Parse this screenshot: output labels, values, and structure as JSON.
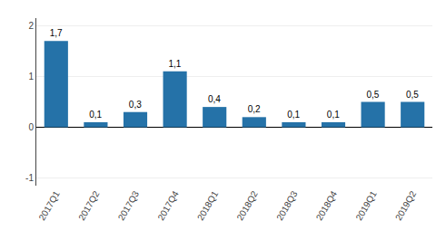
{
  "chart_data": {
    "type": "bar",
    "categories": [
      "2017Q1",
      "2017Q2",
      "2017Q3",
      "2017Q4",
      "2018Q1",
      "2018Q2",
      "2018Q3",
      "2018Q4",
      "2019Q1",
      "2019Q2"
    ],
    "values": [
      1.7,
      0.1,
      0.3,
      1.1,
      0.4,
      0.2,
      0.1,
      0.1,
      0.5,
      0.5
    ],
    "value_labels": [
      "1,7",
      "0,1",
      "0,3",
      "1,1",
      "0,4",
      "0,2",
      "0,1",
      "0,1",
      "0,5",
      "0,5"
    ],
    "data_labels": true,
    "color": "#2572a8",
    "ylim": [
      -1.15,
      2.15
    ],
    "yticks": [
      -1,
      0,
      1,
      2
    ],
    "grid": true
  }
}
